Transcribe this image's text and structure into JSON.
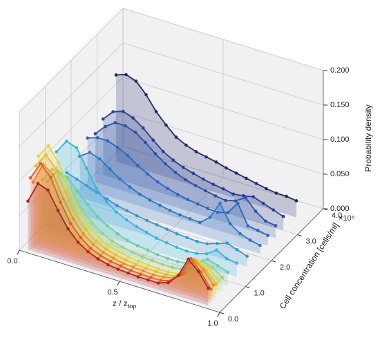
{
  "chart_data": {
    "type": "line3d",
    "xlabel": "z / z",
    "xlabel_sub": "top",
    "ylabel": "Cell concentration [cells/ml]",
    "zlabel": "Probability density",
    "y_offset_label": "×10⁵",
    "xlim": [
      0,
      1
    ],
    "ylim": [
      0,
      4
    ],
    "zlim": [
      0,
      0.2
    ],
    "xticks": [
      {
        "value": 0,
        "label": "0.0"
      },
      0.5,
      {
        "value": 1,
        "label": "1.0"
      }
    ],
    "yticks": [
      {
        "value": 0,
        "label": "0.0"
      },
      {
        "value": 1,
        "label": "1.0"
      },
      {
        "value": 2,
        "label": "2.0"
      },
      {
        "value": 3,
        "label": "3.0"
      },
      {
        "value": 4,
        "label": "4.0"
      }
    ],
    "zticks": [
      {
        "value": 0,
        "label": "0.000"
      },
      {
        "value": 0.05,
        "label": "0.050"
      },
      {
        "value": 0.1,
        "label": "0.100"
      },
      {
        "value": 0.15,
        "label": "0.150"
      },
      {
        "value": 0.2,
        "label": "0.200"
      }
    ],
    "grid": true,
    "x": [
      0.03,
      0.08,
      0.13,
      0.18,
      0.23,
      0.28,
      0.33,
      0.38,
      0.43,
      0.48,
      0.53,
      0.58,
      0.63,
      0.68,
      0.73,
      0.78,
      0.83,
      0.88,
      0.93
    ],
    "series": [
      {
        "y": 3.5,
        "color": "#1f2a6b",
        "values": [
          0.125,
          0.13,
          0.125,
          0.11,
          0.09,
          0.075,
          0.062,
          0.055,
          0.05,
          0.047,
          0.044,
          0.04,
          0.037,
          0.034,
          0.031,
          0.028,
          0.026,
          0.026,
          0.024
        ]
      },
      {
        "y": 3.0,
        "color": "#263d92",
        "values": [
          0.08,
          0.095,
          0.1,
          0.095,
          0.085,
          0.072,
          0.06,
          0.052,
          0.046,
          0.042,
          0.038,
          0.035,
          0.033,
          0.03,
          0.032,
          0.035,
          0.03,
          0.025,
          0.02
        ]
      },
      {
        "y": 2.7,
        "color": "#2a50a8",
        "values": [
          0.07,
          0.085,
          0.095,
          0.095,
          0.09,
          0.08,
          0.068,
          0.058,
          0.05,
          0.044,
          0.04,
          0.037,
          0.034,
          0.032,
          0.036,
          0.045,
          0.03,
          0.02,
          0.018
        ]
      },
      {
        "y": 2.4,
        "color": "#2d64b8",
        "values": [
          0.075,
          0.08,
          0.08,
          0.075,
          0.068,
          0.058,
          0.05,
          0.043,
          0.038,
          0.034,
          0.031,
          0.029,
          0.027,
          0.026,
          0.03,
          0.048,
          0.02,
          0.018,
          0.015
        ]
      },
      {
        "y": 2.1,
        "color": "#2f74c0",
        "values": [
          0.06,
          0.07,
          0.065,
          0.055,
          0.045,
          0.038,
          0.032,
          0.028,
          0.025,
          0.022,
          0.02,
          0.019,
          0.018,
          0.03,
          0.055,
          0.03,
          0.02,
          0.015,
          0.012
        ]
      },
      {
        "y": 1.6,
        "color": "#3a93d0",
        "values": [
          0.055,
          0.05,
          0.045,
          0.04,
          0.035,
          0.03,
          0.027,
          0.024,
          0.022,
          0.02,
          0.018,
          0.016,
          0.015,
          0.014,
          0.015,
          0.02,
          0.025,
          0.02,
          0.015
        ]
      },
      {
        "y": 1.2,
        "color": "#2fb8e0",
        "values": [
          0.1,
          0.12,
          0.115,
          0.09,
          0.065,
          0.05,
          0.04,
          0.033,
          0.028,
          0.024,
          0.02,
          0.018,
          0.016,
          0.015,
          0.016,
          0.02,
          0.03,
          0.022,
          0.02
        ]
      },
      {
        "y": 0.85,
        "color": "#6cc9a8",
        "values": [
          0.07,
          0.09,
          0.085,
          0.07,
          0.055,
          0.042,
          0.033,
          0.026,
          0.021,
          0.018,
          0.016,
          0.014,
          0.013,
          0.013,
          0.015,
          0.02,
          0.03,
          0.025,
          0.02
        ]
      },
      {
        "y": 0.65,
        "color": "#9fd07a",
        "values": [
          0.08,
          0.1,
          0.095,
          0.075,
          0.055,
          0.04,
          0.03,
          0.023,
          0.019,
          0.016,
          0.014,
          0.013,
          0.012,
          0.012,
          0.014,
          0.02,
          0.035,
          0.03,
          0.02
        ]
      },
      {
        "y": 0.5,
        "color": "#e0d93a",
        "values": [
          0.12,
          0.14,
          0.12,
          0.09,
          0.06,
          0.042,
          0.03,
          0.022,
          0.018,
          0.015,
          0.013,
          0.012,
          0.011,
          0.011,
          0.013,
          0.02,
          0.04,
          0.035,
          0.02
        ]
      },
      {
        "y": 0.4,
        "color": "#f2b531",
        "values": [
          0.11,
          0.13,
          0.115,
          0.085,
          0.058,
          0.04,
          0.028,
          0.021,
          0.017,
          0.014,
          0.012,
          0.011,
          0.011,
          0.011,
          0.013,
          0.022,
          0.045,
          0.035,
          0.02
        ]
      },
      {
        "y": 0.3,
        "color": "#f08c2a",
        "values": [
          0.09,
          0.12,
          0.11,
          0.08,
          0.055,
          0.038,
          0.027,
          0.02,
          0.016,
          0.013,
          0.012,
          0.011,
          0.01,
          0.011,
          0.014,
          0.025,
          0.05,
          0.04,
          0.022
        ]
      },
      {
        "y": 0.2,
        "color": "#e65a26",
        "values": [
          0.1,
          0.125,
          0.11,
          0.078,
          0.052,
          0.036,
          0.025,
          0.019,
          0.015,
          0.013,
          0.011,
          0.01,
          0.01,
          0.01,
          0.014,
          0.028,
          0.055,
          0.04,
          0.02
        ]
      },
      {
        "y": 0.1,
        "color": "#b02222",
        "values": [
          0.07,
          0.1,
          0.095,
          0.07,
          0.048,
          0.033,
          0.024,
          0.018,
          0.014,
          0.012,
          0.011,
          0.01,
          0.01,
          0.01,
          0.015,
          0.03,
          0.058,
          0.045,
          0.025
        ]
      }
    ]
  }
}
